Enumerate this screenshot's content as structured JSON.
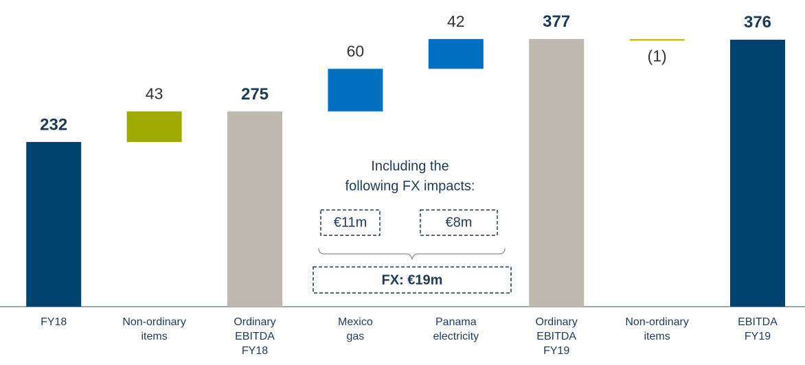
{
  "chart_data": {
    "type": "waterfall",
    "categories": [
      "FY18",
      "Non-ordinary items",
      "Ordinary EBITDA FY18",
      "Mexico gas",
      "Panama electricity",
      "Ordinary EBITDA FY19",
      "Non-ordinary items",
      "EBITDA FY19"
    ],
    "values": [
      232,
      43,
      275,
      60,
      42,
      377,
      -1,
      376
    ],
    "value_labels": [
      "232",
      "43",
      "275",
      "60",
      "42",
      "377",
      "(1)",
      "376"
    ],
    "totals": [
      true,
      false,
      true,
      false,
      false,
      true,
      false,
      true
    ],
    "colors": [
      "#00426f",
      "#a0ab00",
      "#bfb8ae",
      "#0070c0",
      "#0070c0",
      "#bfb8ae",
      "#c8c000",
      "#00426f"
    ],
    "ylim": [
      0,
      430
    ],
    "annotations": {
      "heading": [
        "Including the",
        "following FX impacts:"
      ],
      "fx_items": [
        "€11m",
        "€8m"
      ],
      "fx_total": "FX: €19m"
    }
  }
}
